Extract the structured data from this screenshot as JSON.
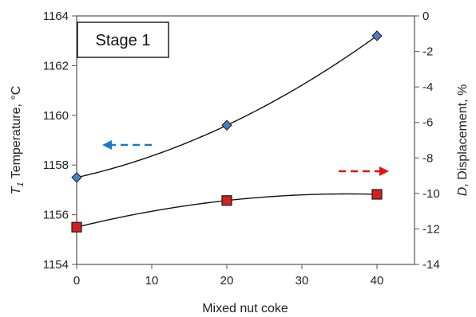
{
  "chart_data": {
    "type": "scatter",
    "x": [
      0,
      20,
      40
    ],
    "x_ticks": [
      "0",
      "10",
      "20",
      "30",
      "40"
    ],
    "xlim": [
      0,
      45
    ],
    "xlabel": "Mixed nut coke",
    "y_left": {
      "label_italic": "T",
      "label_sub": "1",
      "label_rest": " Temperature, ",
      "label_unit": "°C",
      "ylim": [
        1154,
        1164
      ],
      "ticks": [
        "1154",
        "1156",
        "1158",
        "1160",
        "1162",
        "1164"
      ]
    },
    "y_right": {
      "label_italic": "D",
      "label_rest": ", Displacement, %",
      "ylim": [
        -14,
        0
      ],
      "ticks": [
        "-14",
        "-12",
        "-10",
        "-8",
        "-6",
        "-4",
        "-2",
        "0"
      ]
    },
    "series": [
      {
        "axis": "left",
        "marker": "diamond",
        "color": "#4a7dbf",
        "values": [
          1157.5,
          1159.6,
          1163.2
        ],
        "arrow_color": "#1f78c8",
        "arrow_direction": "left"
      },
      {
        "axis": "right",
        "marker": "square",
        "color": "#d42020",
        "values": [
          -11.9,
          -10.4,
          -10.05
        ],
        "arrow_color": "#e81010",
        "arrow_direction": "right"
      }
    ],
    "annotation": "Stage 1",
    "grid": false
  }
}
